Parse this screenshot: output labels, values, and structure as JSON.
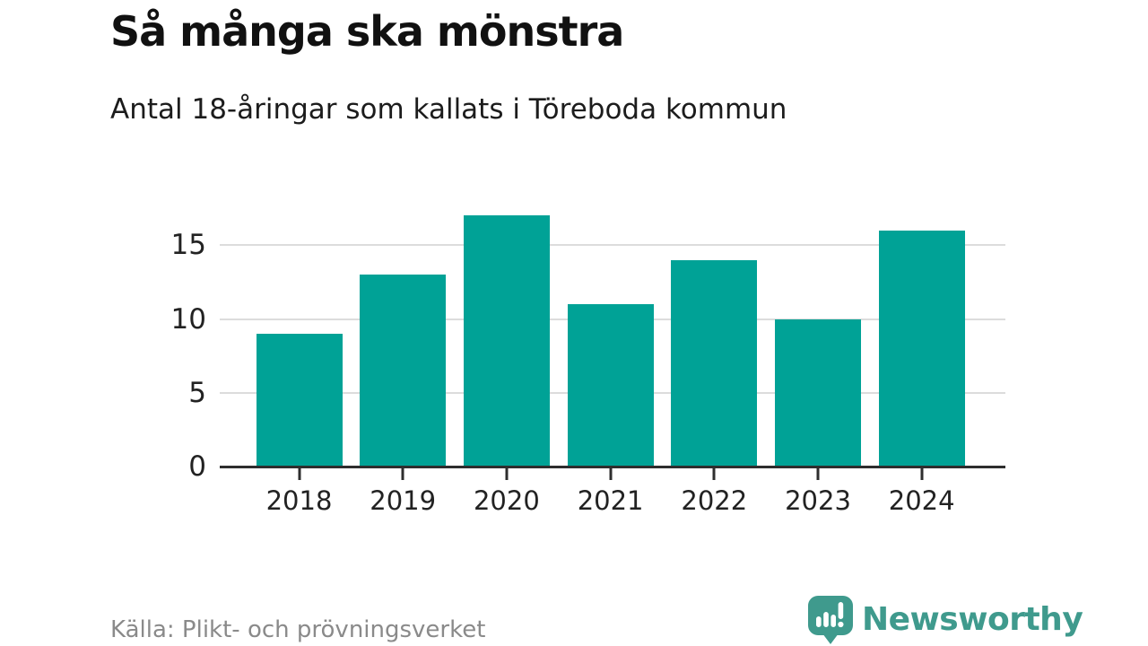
{
  "header": {
    "title": "Så många ska mönstra",
    "subtitle": "Antal 18-åringar som kallats i Töreboda kommun"
  },
  "footer": {
    "source": "Källa: Plikt- och prövningsverket",
    "brand": "Newsworthy"
  },
  "colors": {
    "bar": "#00a296",
    "brand": "#3f9a8d",
    "axis": "#2e2e2e",
    "grid": "#dcdcdc"
  },
  "chart_data": {
    "type": "bar",
    "categories": [
      "2018",
      "2019",
      "2020",
      "2021",
      "2022",
      "2023",
      "2024"
    ],
    "values": [
      9,
      13,
      17,
      11,
      14,
      10,
      16
    ],
    "title": "Så många ska mönstra",
    "subtitle": "Antal 18-åringar som kallats i Töreboda kommun",
    "xlabel": "",
    "ylabel": "",
    "yticks": [
      0,
      5,
      10,
      15
    ],
    "ylim": [
      0,
      17.3
    ],
    "grid": true,
    "legend": false,
    "source": "Källa: Plikt- och prövningsverket"
  }
}
